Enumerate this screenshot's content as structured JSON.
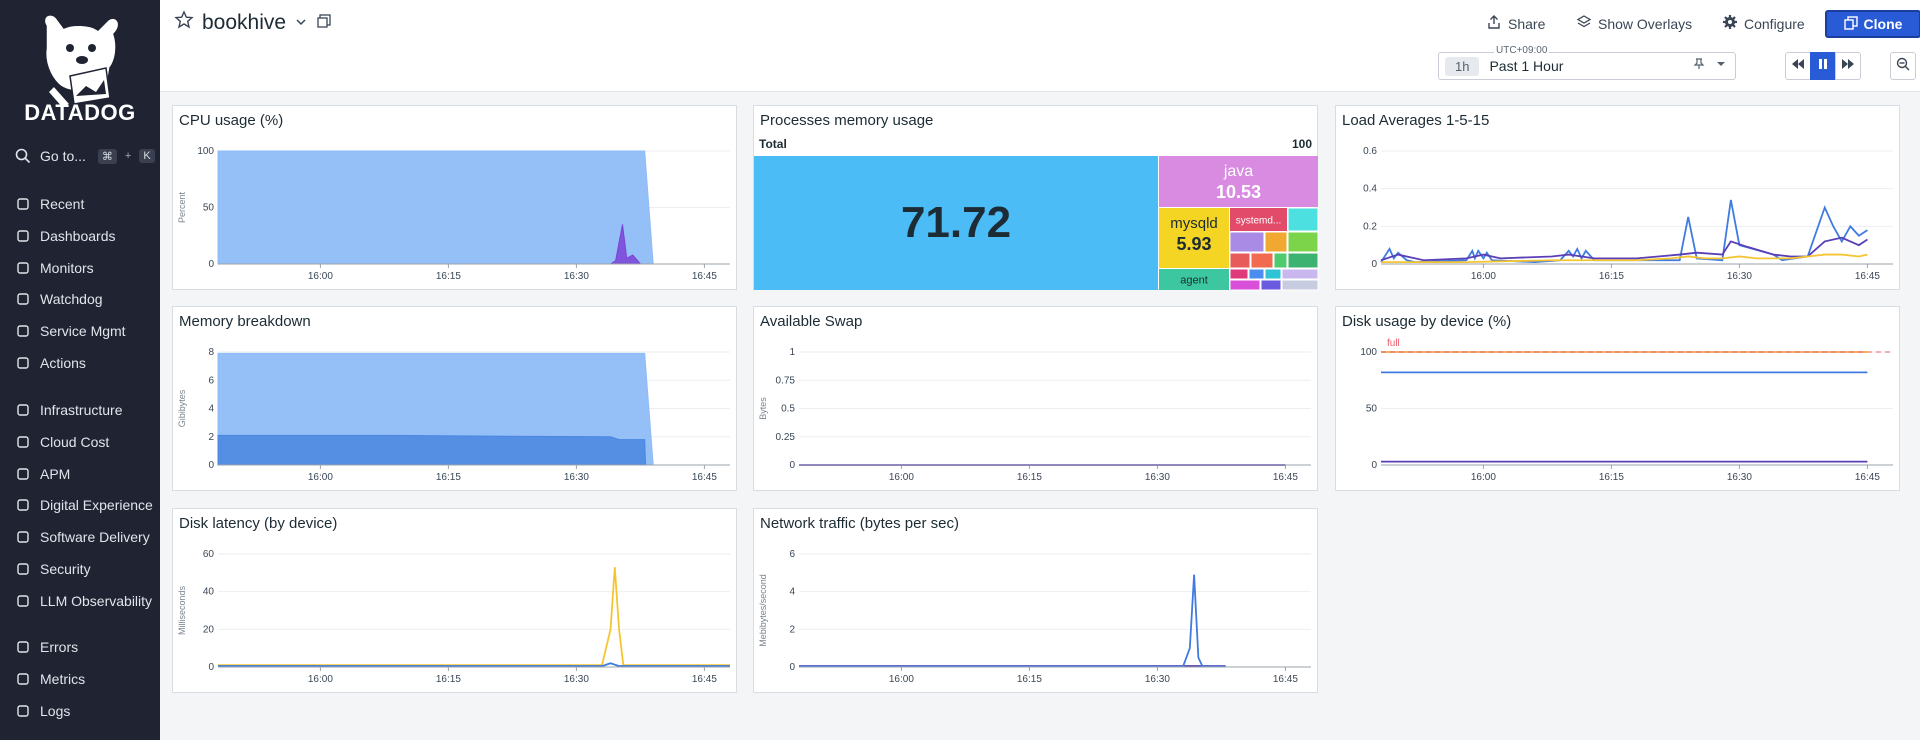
{
  "sidebar": {
    "logo_text": "DATADOG",
    "goto": {
      "label": "Go to...",
      "k1": "⌘",
      "plus": "+",
      "k2": "K"
    },
    "groups": [
      [
        {
          "label": "Recent",
          "icon": "recent-icon"
        },
        {
          "label": "Dashboards",
          "icon": "dashboards-icon"
        },
        {
          "label": "Monitors",
          "icon": "monitors-icon"
        },
        {
          "label": "Watchdog",
          "icon": "watchdog-icon"
        },
        {
          "label": "Service Mgmt",
          "icon": "service-mgmt-icon"
        },
        {
          "label": "Actions",
          "icon": "actions-icon"
        }
      ],
      [
        {
          "label": "Infrastructure",
          "icon": "infrastructure-icon"
        },
        {
          "label": "Cloud Cost",
          "icon": "cloud-cost-icon"
        },
        {
          "label": "APM",
          "icon": "apm-icon"
        },
        {
          "label": "Digital Experience",
          "icon": "digital-experience-icon"
        },
        {
          "label": "Software Delivery",
          "icon": "software-delivery-icon"
        },
        {
          "label": "Security",
          "icon": "security-icon"
        },
        {
          "label": "LLM Observability",
          "icon": "llm-observability-icon"
        }
      ],
      [
        {
          "label": "Errors",
          "icon": "errors-icon"
        },
        {
          "label": "Metrics",
          "icon": "metrics-icon"
        },
        {
          "label": "Logs",
          "icon": "logs-icon"
        }
      ]
    ]
  },
  "header": {
    "title": "bookhive",
    "share": "Share",
    "overlays": "Show Overlays",
    "configure": "Configure",
    "clone": "Clone",
    "timezone": "UTC+09:00",
    "time_pill": "1h",
    "time_range": "Past 1 Hour"
  },
  "colors": {
    "accent": "#2a5bd7",
    "sidebar": "#1f2332",
    "swap_red": "#e8596b"
  },
  "chart_data": [
    {
      "id": "cpu",
      "type": "area",
      "title": "CPU usage (%)",
      "ylabel": "Percent",
      "ylim": [
        0,
        100
      ],
      "yticks": [
        "100",
        "50",
        "0"
      ],
      "xticks": [
        "16:00",
        "16:15",
        "16:30",
        "16:45"
      ],
      "series": [
        {
          "color": "#8fbcf7",
          "points": [
            [
              0,
              100
            ],
            [
              50,
              100
            ],
            [
              51,
              0
            ],
            [
              60,
              0
            ]
          ]
        },
        {
          "color": "#7b43d6",
          "points": [
            [
              0,
              0
            ],
            [
              46,
              0
            ],
            [
              46.6,
              3
            ],
            [
              47.4,
              35
            ],
            [
              47.9,
              5
            ],
            [
              48.6,
              8
            ],
            [
              49.5,
              0
            ],
            [
              60,
              0
            ]
          ]
        }
      ]
    },
    {
      "id": "mem",
      "type": "treemap",
      "title": "Processes memory usage",
      "total_label": "Total",
      "total_value": "100",
      "cells": [
        {
          "label": "",
          "value": "71.72",
          "color": "#4bbcf5",
          "text": "#1c2b34"
        },
        {
          "label": "java",
          "value": "10.53",
          "color": "#d88be0",
          "text": "#ffffff"
        },
        {
          "label": "mysqld",
          "value": "5.93",
          "color": "#f5d524",
          "text": "#1c2b34"
        },
        {
          "label": "systemd...",
          "value": "",
          "color": "#e24b6a",
          "text": "#ffffff"
        },
        {
          "label": "agent",
          "value": "",
          "color": "#3cc7a0",
          "text": "#1c2b34"
        }
      ]
    },
    {
      "id": "load",
      "type": "line",
      "title": "Load Averages 1-5-15",
      "ylim": [
        0,
        0.6
      ],
      "yticks": [
        "0.6",
        "0.4",
        "0.2",
        "0"
      ],
      "xticks": [
        "16:00",
        "16:15",
        "16:30",
        "16:45"
      ],
      "series": [
        {
          "name": "",
          "color": "#3f7be0",
          "points": [
            [
              0,
              0.01
            ],
            [
              1,
              0.08
            ],
            [
              1.5,
              0.03
            ],
            [
              2,
              0.06
            ],
            [
              3,
              0.02
            ],
            [
              4,
              0.01
            ],
            [
              10,
              0.02
            ],
            [
              10.7,
              0.07
            ],
            [
              11,
              0.03
            ],
            [
              11.4,
              0.07
            ],
            [
              12,
              0.03
            ],
            [
              12.4,
              0.06
            ],
            [
              13,
              0.02
            ],
            [
              18,
              0.01
            ],
            [
              21,
              0.02
            ],
            [
              22,
              0.07
            ],
            [
              22.5,
              0.04
            ],
            [
              23,
              0.08
            ],
            [
              23.5,
              0.03
            ],
            [
              24,
              0.07
            ],
            [
              25,
              0.02
            ],
            [
              30,
              0.02
            ],
            [
              35,
              0.02
            ],
            [
              36,
              0.25
            ],
            [
              37,
              0.03
            ],
            [
              40,
              0.02
            ],
            [
              41,
              0.34
            ],
            [
              42,
              0.1
            ],
            [
              46,
              0.05
            ],
            [
              47,
              0.02
            ],
            [
              50,
              0.04
            ],
            [
              52,
              0.3
            ],
            [
              53,
              0.2
            ],
            [
              54,
              0.12
            ],
            [
              55,
              0.2
            ],
            [
              56,
              0.15
            ],
            [
              57,
              0.18
            ]
          ]
        },
        {
          "name": "",
          "color": "#5a3fb6",
          "points": [
            [
              0,
              0.02
            ],
            [
              2,
              0.05
            ],
            [
              5,
              0.02
            ],
            [
              10,
              0.03
            ],
            [
              12,
              0.05
            ],
            [
              14,
              0.03
            ],
            [
              20,
              0.04
            ],
            [
              22,
              0.05
            ],
            [
              25,
              0.03
            ],
            [
              30,
              0.03
            ],
            [
              35,
              0.05
            ],
            [
              37,
              0.06
            ],
            [
              40,
              0.05
            ],
            [
              41,
              0.12
            ],
            [
              43,
              0.09
            ],
            [
              46,
              0.05
            ],
            [
              48,
              0.04
            ],
            [
              50,
              0.04
            ],
            [
              52,
              0.12
            ],
            [
              54,
              0.14
            ],
            [
              56,
              0.1
            ],
            [
              57,
              0.13
            ]
          ]
        },
        {
          "name": "",
          "color": "#f5c531",
          "points": [
            [
              0,
              0.01
            ],
            [
              10,
              0.01
            ],
            [
              20,
              0.02
            ],
            [
              30,
              0.02
            ],
            [
              34,
              0.03
            ],
            [
              36,
              0.04
            ],
            [
              38,
              0.03
            ],
            [
              40,
              0.03
            ],
            [
              42,
              0.04
            ],
            [
              44,
              0.03
            ],
            [
              46,
              0.03
            ],
            [
              48,
              0.03
            ],
            [
              50,
              0.04
            ],
            [
              52,
              0.05
            ],
            [
              54,
              0.05
            ],
            [
              56,
              0.04
            ],
            [
              57,
              0.05
            ]
          ]
        }
      ]
    },
    {
      "id": "membk",
      "type": "area",
      "title": "Memory breakdown",
      "ylabel": "Gibibytes",
      "ylim": [
        0,
        8
      ],
      "yticks": [
        "8",
        "6",
        "4",
        "2",
        "0"
      ],
      "xticks": [
        "16:00",
        "16:15",
        "16:30",
        "16:45"
      ],
      "series": [
        {
          "color": "#8fbcf7",
          "points": [
            [
              0,
              7.9
            ],
            [
              50,
              7.9
            ],
            [
              51,
              0
            ],
            [
              60,
              0
            ]
          ]
        },
        {
          "color": "#4a86e0",
          "points": [
            [
              0,
              2.1
            ],
            [
              20,
              2.1
            ],
            [
              30,
              2.05
            ],
            [
              46,
              2.0
            ],
            [
              47,
              1.8
            ],
            [
              50,
              1.8
            ],
            [
              50.1,
              0
            ],
            [
              60,
              0
            ]
          ]
        }
      ]
    },
    {
      "id": "swap",
      "type": "line",
      "title": "Available Swap",
      "ylabel": "Bytes",
      "ylim": [
        0,
        1
      ],
      "yticks": [
        "1",
        "0.75",
        "0.5",
        "0.25",
        "0"
      ],
      "xticks": [
        "16:00",
        "16:15",
        "16:30",
        "16:45"
      ],
      "series": [
        {
          "name": "",
          "color": "#5a3fb6",
          "points": [
            [
              0,
              0
            ],
            [
              57,
              0
            ]
          ]
        }
      ]
    },
    {
      "id": "disk",
      "type": "line",
      "title": "Disk usage by device (%)",
      "ylim": [
        0,
        100
      ],
      "yticks": [
        "100",
        "50",
        "0"
      ],
      "xticks": [
        "16:00",
        "16:15",
        "16:30",
        "16:45"
      ],
      "marker_label": "full",
      "series": [
        {
          "name": "",
          "color": "#f0a648",
          "points": [
            [
              0,
              100
            ],
            [
              57,
              100
            ]
          ]
        },
        {
          "name": "",
          "color": "#3f7be0",
          "points": [
            [
              0,
              82
            ],
            [
              57,
              82
            ]
          ]
        },
        {
          "name": "",
          "color": "#5a3fb6",
          "points": [
            [
              0,
              3
            ],
            [
              57,
              3
            ]
          ]
        }
      ]
    },
    {
      "id": "latency",
      "type": "line",
      "title": "Disk latency (by device)",
      "ylabel": "Milliseconds",
      "ylim": [
        0,
        60
      ],
      "yticks": [
        "60",
        "40",
        "20",
        "0"
      ],
      "xticks": [
        "16:00",
        "16:15",
        "16:30",
        "16:45"
      ],
      "series": [
        {
          "name": "",
          "color": "#f5c531",
          "points": [
            [
              0,
              1
            ],
            [
              20,
              1
            ],
            [
              40,
              1
            ],
            [
              45,
              1
            ],
            [
              46,
              20
            ],
            [
              46.5,
              53
            ],
            [
              47,
              20
            ],
            [
              47.5,
              1
            ],
            [
              50,
              1
            ],
            [
              60,
              1
            ]
          ]
        },
        {
          "name": "",
          "color": "#3f7be0",
          "points": [
            [
              0,
              0.5
            ],
            [
              45,
              0.5
            ],
            [
              46,
              2
            ],
            [
              47,
              0.5
            ],
            [
              60,
              0.5
            ]
          ]
        }
      ]
    },
    {
      "id": "net",
      "type": "line",
      "title": "Network traffic (bytes per sec)",
      "ylabel": "Mebibytes/second",
      "ylim": [
        0,
        6
      ],
      "yticks": [
        "6",
        "4",
        "2",
        "0"
      ],
      "xticks": [
        "16:00",
        "16:15",
        "16:30",
        "16:45"
      ],
      "series": [
        {
          "name": "",
          "color": "#5a3fb6",
          "points": [
            [
              0,
              0.05
            ],
            [
              40,
              0.05
            ],
            [
              50,
              0.05
            ]
          ]
        },
        {
          "name": "",
          "color": "#3f7be0",
          "points": [
            [
              0,
              0.02
            ],
            [
              45,
              0.02
            ],
            [
              45.8,
              1
            ],
            [
              46.3,
              4.9
            ],
            [
              46.8,
              0.5
            ],
            [
              47.3,
              0.02
            ],
            [
              50,
              0.02
            ]
          ]
        }
      ]
    }
  ]
}
